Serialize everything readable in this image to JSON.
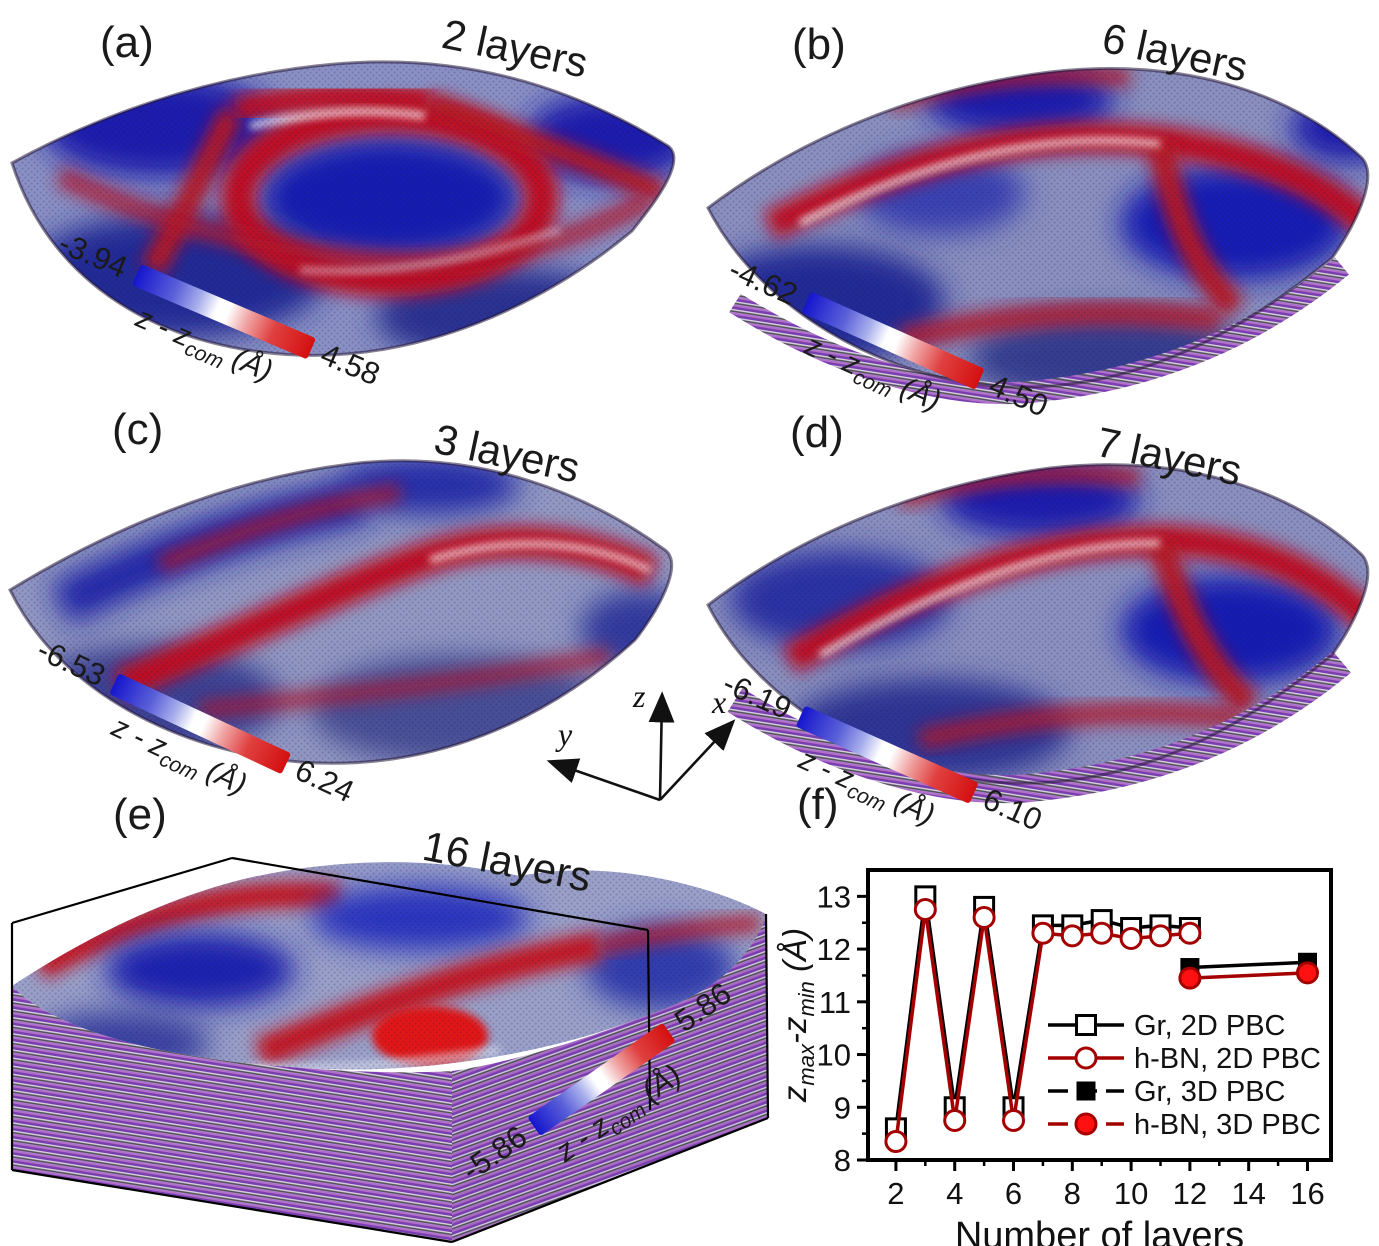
{
  "figure": {
    "panels": {
      "a": {
        "label": "(a)",
        "title": "2 layers",
        "cbar_min": "-3.94",
        "cbar_max": "4.58"
      },
      "b": {
        "label": "(b)",
        "title": "6 layers",
        "cbar_min": "-4.62",
        "cbar_max": "4.50"
      },
      "c": {
        "label": "(c)",
        "title": "3 layers",
        "cbar_min": "-6.53",
        "cbar_max": "6.24"
      },
      "d": {
        "label": "(d)",
        "title": "7 layers",
        "cbar_min": "-6.19",
        "cbar_max": "6.10"
      },
      "e": {
        "label": "(e)",
        "title": "16 layers",
        "cbar_min": "-5.86",
        "cbar_max": "5.86"
      },
      "f": {
        "label": "(f)"
      }
    },
    "colorbar": {
      "label_main": "z - z",
      "label_sub": "com",
      "label_unit": " (Å)"
    },
    "triad": {
      "x": "x",
      "y": "y",
      "z": "z"
    },
    "colors": {
      "cmap_blue": "#1515cd",
      "cmap_white": "#ffffff",
      "cmap_red": "#d40f0f"
    }
  },
  "chart_data": {
    "type": "line",
    "title": "",
    "xlabel": "Number of layers",
    "ylabel": "zmax-zmin (Å)",
    "ylabel_parts": {
      "pre": "z",
      "sub1": "max",
      "mid": "-z",
      "sub2": "min",
      "post": " (Å)"
    },
    "xlim": [
      1.05,
      16.8
    ],
    "ylim": [
      8,
      13.5
    ],
    "xticks": [
      2,
      4,
      6,
      8,
      10,
      12,
      14,
      16
    ],
    "xminor": [
      3,
      5,
      7,
      9,
      11,
      13,
      15
    ],
    "yticks": [
      8,
      9,
      10,
      11,
      12,
      13
    ],
    "yminor": [
      8.5,
      9.5,
      10.5,
      11.5,
      12.5
    ],
    "grid": false,
    "legend_position": "inside-right",
    "series": [
      {
        "name": "Gr, 2D PBC",
        "line_color": "#000000",
        "marker": "square",
        "fill": "open",
        "x": [
          2,
          3,
          4,
          5,
          6,
          7,
          8,
          9,
          10,
          11,
          12
        ],
        "y": [
          8.6,
          13.0,
          9.0,
          12.8,
          9.0,
          12.45,
          12.45,
          12.55,
          12.4,
          12.45,
          12.4
        ]
      },
      {
        "name": "h-BN, 2D PBC",
        "line_color": "#a40000",
        "marker": "circle",
        "fill": "open",
        "x": [
          2,
          3,
          4,
          5,
          6,
          7,
          8,
          9,
          10,
          11,
          12
        ],
        "y": [
          8.35,
          12.75,
          8.75,
          12.6,
          8.75,
          12.3,
          12.25,
          12.3,
          12.2,
          12.25,
          12.3
        ]
      },
      {
        "name": "Gr, 3D PBC",
        "line_color": "#000000",
        "marker": "square",
        "fill": "solid",
        "marker_color": "#000000",
        "x": [
          12,
          16
        ],
        "y": [
          11.65,
          11.75
        ]
      },
      {
        "name": "h-BN, 3D PBC",
        "line_color": "#a40000",
        "marker": "circle",
        "fill": "solid",
        "marker_color": "#ff1111",
        "x": [
          12,
          16
        ],
        "y": [
          11.45,
          11.55
        ]
      }
    ]
  }
}
